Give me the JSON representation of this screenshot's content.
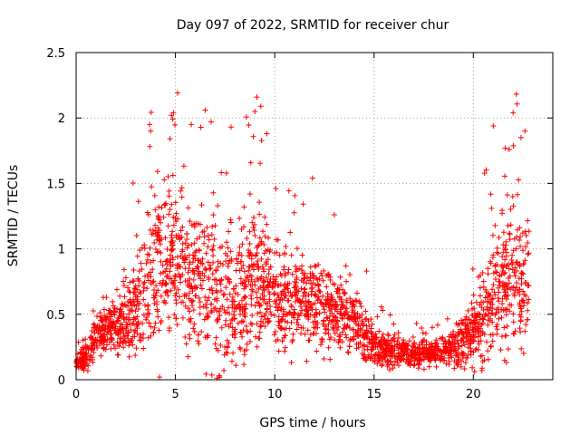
{
  "chart_data": {
    "type": "scatter",
    "title": "Day 097 of 2022, SRMTID for receiver chur",
    "xlabel": "GPS time / hours",
    "ylabel": "SRMTID / TECUs",
    "xlim": [
      0,
      24
    ],
    "ylim": [
      0,
      2.5
    ],
    "grid": true,
    "marker": "+",
    "series_color": "#ff0000",
    "x_ticks": [
      {
        "value": 0,
        "label": "0"
      },
      {
        "value": 5,
        "label": "5"
      },
      {
        "value": 10,
        "label": "10"
      },
      {
        "value": 15,
        "label": "15"
      },
      {
        "value": 20,
        "label": "20"
      }
    ],
    "y_ticks": [
      {
        "value": 0,
        "label": "0"
      },
      {
        "value": 0.5,
        "label": "0.5"
      },
      {
        "value": 1,
        "label": "1"
      },
      {
        "value": 1.5,
        "label": "1.5"
      },
      {
        "value": 2,
        "label": "2"
      },
      {
        "value": 2.5,
        "label": "2.5"
      }
    ],
    "profile": [
      {
        "x": 0.0,
        "median": 0.12,
        "spread": 0.05
      },
      {
        "x": 0.5,
        "median": 0.18,
        "spread": 0.08
      },
      {
        "x": 1.0,
        "median": 0.33,
        "spread": 0.12
      },
      {
        "x": 2.0,
        "median": 0.4,
        "spread": 0.15
      },
      {
        "x": 3.0,
        "median": 0.55,
        "spread": 0.3
      },
      {
        "x": 4.0,
        "median": 0.85,
        "spread": 0.45
      },
      {
        "x": 5.0,
        "median": 0.9,
        "spread": 0.45
      },
      {
        "x": 6.0,
        "median": 0.8,
        "spread": 0.45
      },
      {
        "x": 7.0,
        "median": 0.65,
        "spread": 0.5
      },
      {
        "x": 8.0,
        "median": 0.5,
        "spread": 0.4
      },
      {
        "x": 9.0,
        "median": 0.75,
        "spread": 0.5
      },
      {
        "x": 10.0,
        "median": 0.65,
        "spread": 0.3
      },
      {
        "x": 11.0,
        "median": 0.6,
        "spread": 0.25
      },
      {
        "x": 12.0,
        "median": 0.55,
        "spread": 0.25
      },
      {
        "x": 13.0,
        "median": 0.5,
        "spread": 0.22
      },
      {
        "x": 14.0,
        "median": 0.45,
        "spread": 0.2
      },
      {
        "x": 15.0,
        "median": 0.25,
        "spread": 0.12
      },
      {
        "x": 16.0,
        "median": 0.22,
        "spread": 0.1
      },
      {
        "x": 17.0,
        "median": 0.2,
        "spread": 0.08
      },
      {
        "x": 18.0,
        "median": 0.2,
        "spread": 0.08
      },
      {
        "x": 19.0,
        "median": 0.25,
        "spread": 0.1
      },
      {
        "x": 20.0,
        "median": 0.35,
        "spread": 0.2
      },
      {
        "x": 21.0,
        "median": 0.6,
        "spread": 0.35
      },
      {
        "x": 22.0,
        "median": 0.8,
        "spread": 0.45
      },
      {
        "x": 22.8,
        "median": 0.7,
        "spread": 0.4
      }
    ],
    "peaks": [
      {
        "x": 3.7,
        "y": 1.95
      },
      {
        "x": 3.75,
        "y": 1.9
      },
      {
        "x": 4.8,
        "y": 2.02
      },
      {
        "x": 4.9,
        "y": 2.04
      },
      {
        "x": 5.8,
        "y": 1.95
      },
      {
        "x": 6.5,
        "y": 2.06
      },
      {
        "x": 6.8,
        "y": 1.97
      },
      {
        "x": 7.8,
        "y": 1.93
      },
      {
        "x": 9.1,
        "y": 2.16
      },
      {
        "x": 9.0,
        "y": 2.05
      },
      {
        "x": 9.3,
        "y": 2.09
      },
      {
        "x": 9.6,
        "y": 1.88
      },
      {
        "x": 11.9,
        "y": 1.54
      },
      {
        "x": 13.0,
        "y": 1.26
      },
      {
        "x": 21.6,
        "y": 1.77
      },
      {
        "x": 21.8,
        "y": 1.76
      },
      {
        "x": 22.0,
        "y": 2.04
      },
      {
        "x": 22.6,
        "y": 1.9
      },
      {
        "x": 22.4,
        "y": 1.85
      },
      {
        "x": 4.2,
        "y": 0.02
      },
      {
        "x": 7.2,
        "y": 0.03
      }
    ]
  }
}
